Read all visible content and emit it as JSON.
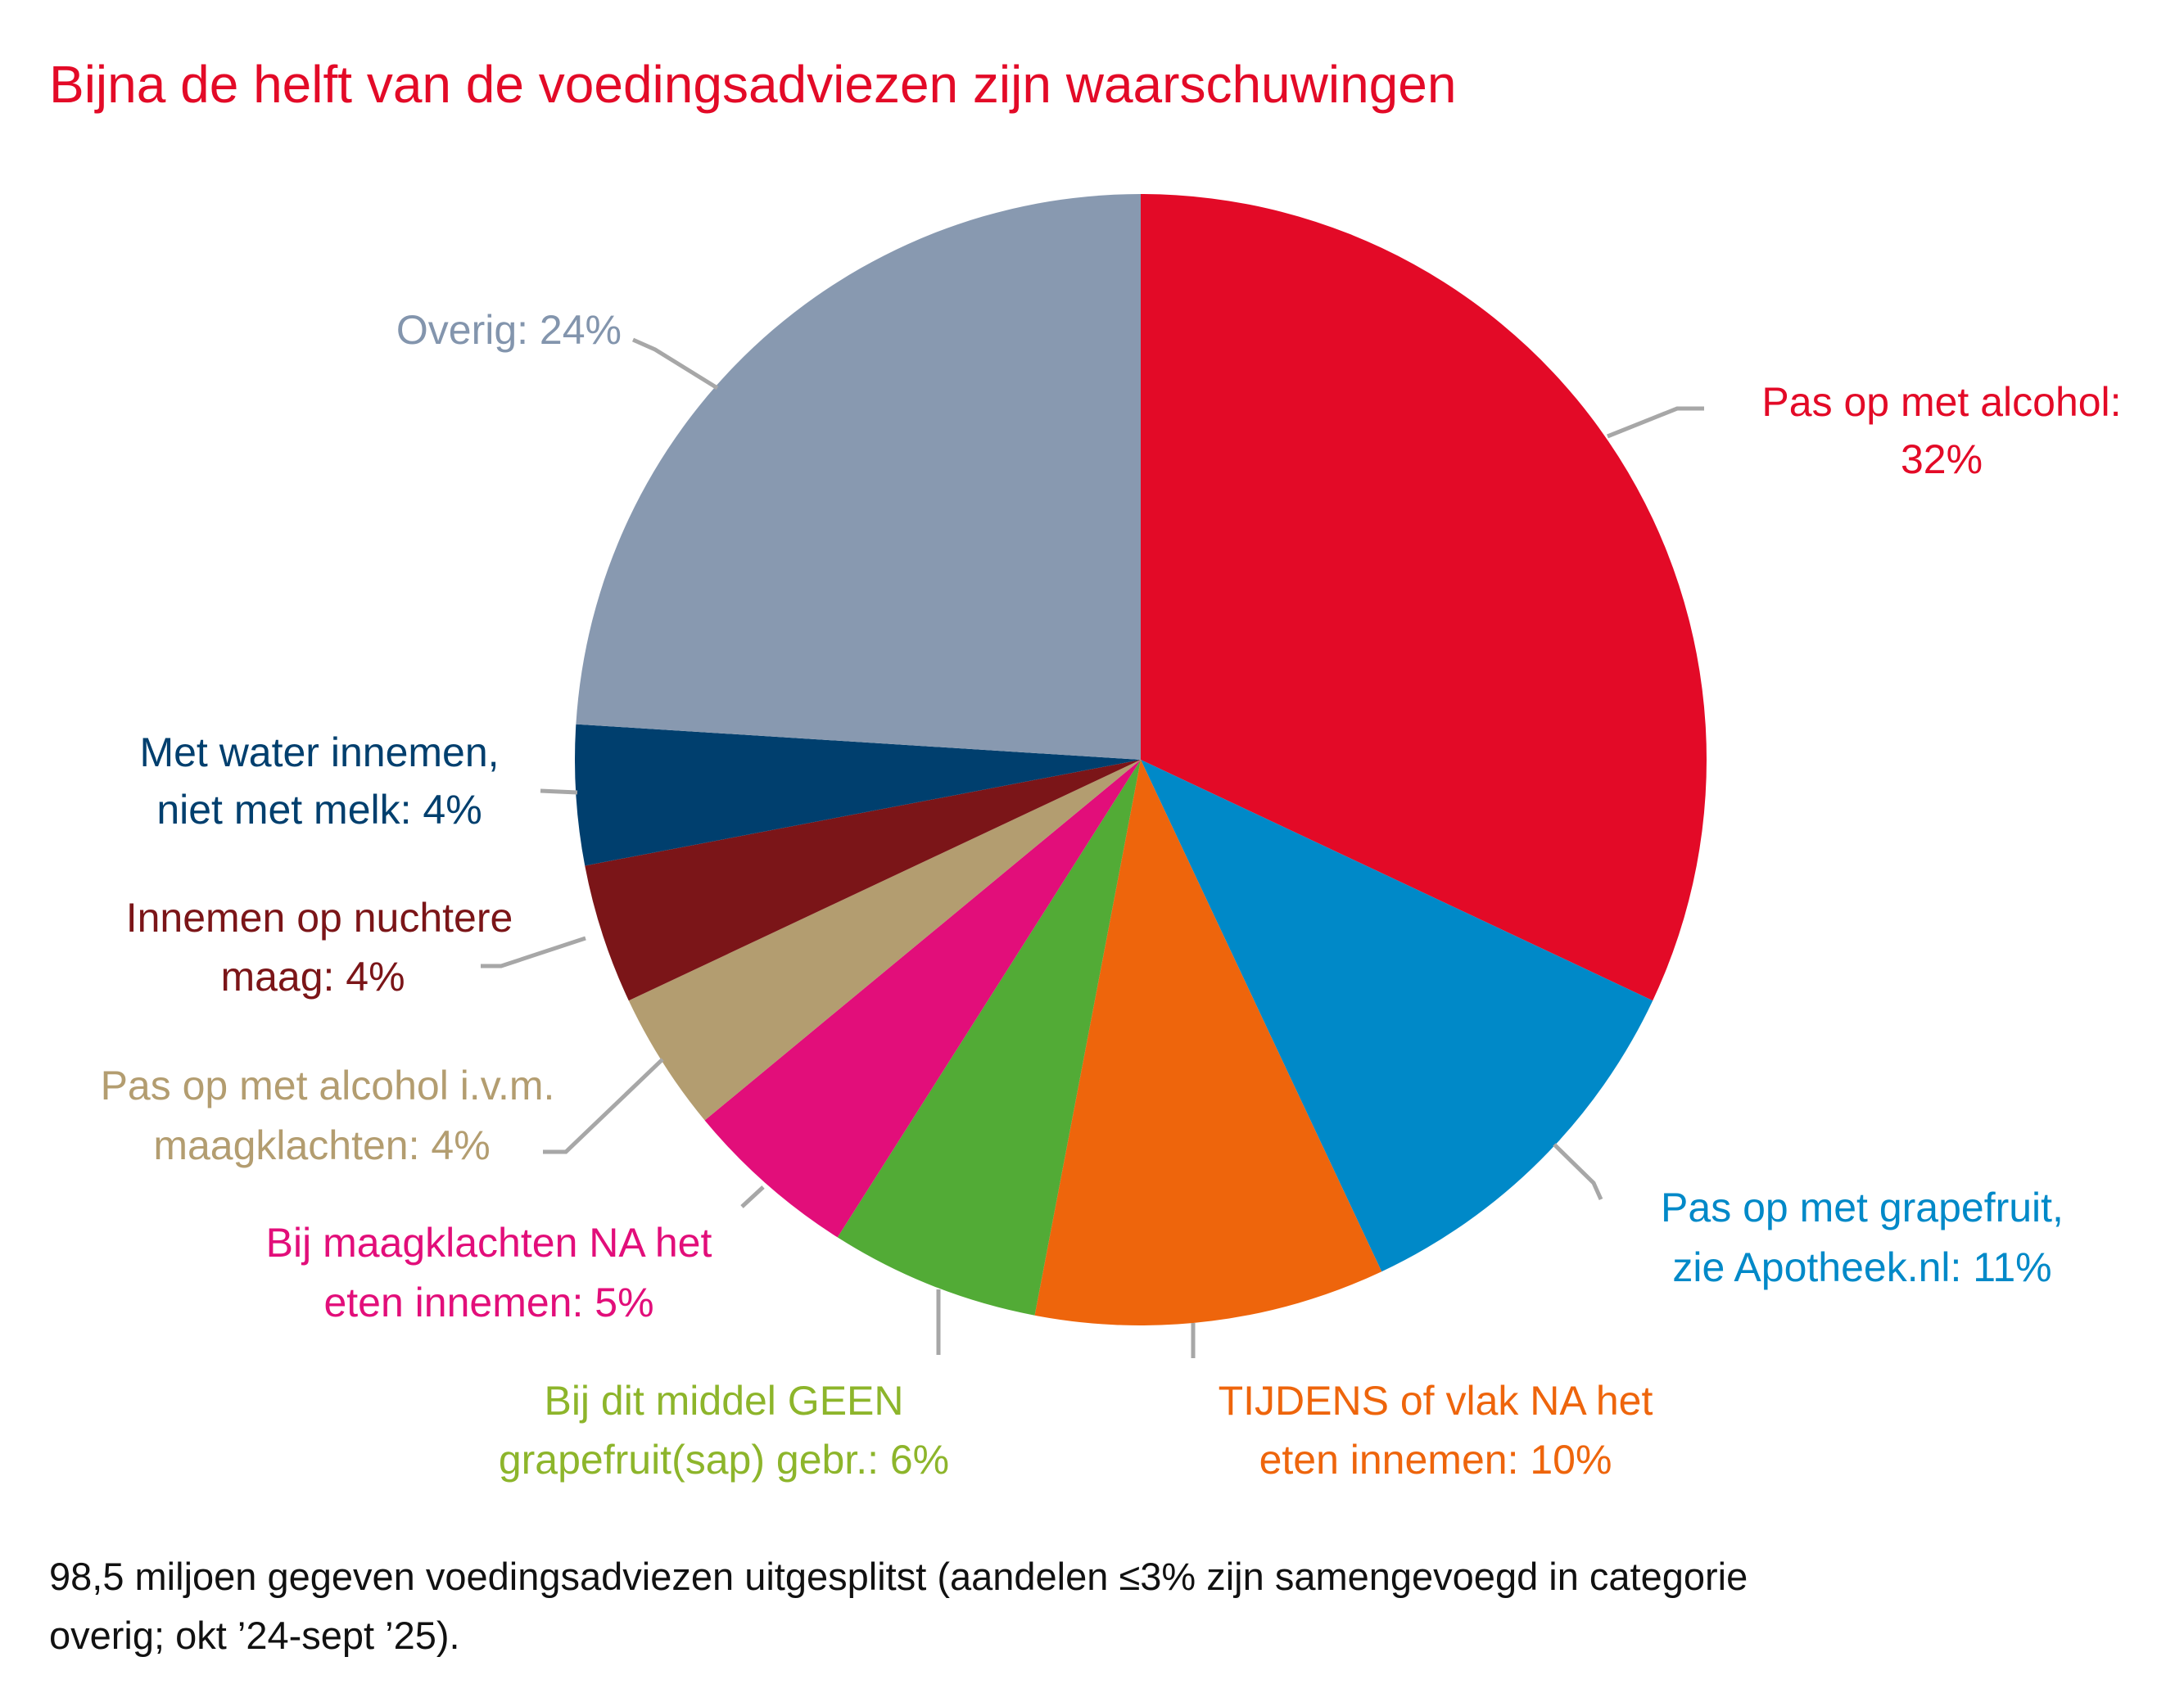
{
  "chart_data": {
    "type": "pie",
    "title": "Bijna de helft van de voedingsadviezen zijn waarschuwingen",
    "title_color": "#e30a27",
    "start": "top, clockwise",
    "slices": [
      {
        "name": "Pas op met alcohol",
        "value": 32,
        "color": "#e30a27",
        "label_color": "#e30a27",
        "lines": [
          "Pas op met alcohol:",
          "32%"
        ]
      },
      {
        "name": "Pas op met grapefruit, zie Apotheek.nl",
        "value": 11,
        "color": "#0089c8",
        "label_color": "#0089c8",
        "lines": [
          "Pas op met grapefruit,",
          "zie Apotheek.nl: 11%"
        ]
      },
      {
        "name": "TIJDENS of vlak NA het eten innemen",
        "value": 10,
        "color": "#ee650c",
        "label_color": "#ee650c",
        "lines": [
          "TIJDENS of vlak NA het",
          "eten innemen: 10%"
        ]
      },
      {
        "name": "Bij dit middel GEEN grapefruit(sap) gebr.",
        "value": 6,
        "color": "#52ab36",
        "label_color": "#8db52b",
        "lines": [
          "Bij dit middel GEEN",
          "grapefruit(sap) gebr.: 6%"
        ]
      },
      {
        "name": "Bij maagklachten NA het eten innemen",
        "value": 5,
        "color": "#e20e7a",
        "label_color": "#e20e7a",
        "lines": [
          "Bij maagklachten NA het",
          "eten innemen: 5%"
        ]
      },
      {
        "name": "Pas op met alcohol i.v.m. maagklachten",
        "value": 4,
        "color": "#b39d70",
        "label_color": "#b39d70",
        "lines": [
          "Pas op met alcohol i.v.m.",
          "maagklachten: 4%"
        ]
      },
      {
        "name": "Innemen op nuchtere maag",
        "value": 4,
        "color": "#7b1518",
        "label_color": "#7b1518",
        "lines": [
          "Innemen op nuchtere",
          "maag: 4%"
        ]
      },
      {
        "name": "Met water innemen, niet met melk",
        "value": 4,
        "color": "#003f6e",
        "label_color": "#003f6e",
        "lines": [
          "Met water innemen,",
          "niet met melk: 4%"
        ]
      },
      {
        "name": "Overig",
        "value": 24,
        "color": "#8899b0",
        "label_color": "#8395ad",
        "lines": [
          "Overig: 24%"
        ]
      }
    ]
  },
  "footnote": [
    "98,5 miljoen gegeven voedingsadviezen uitgesplitst (aandelen ≤3% zijn samengevoegd in categorie",
    "overig; okt ’24-sept ’25)."
  ]
}
